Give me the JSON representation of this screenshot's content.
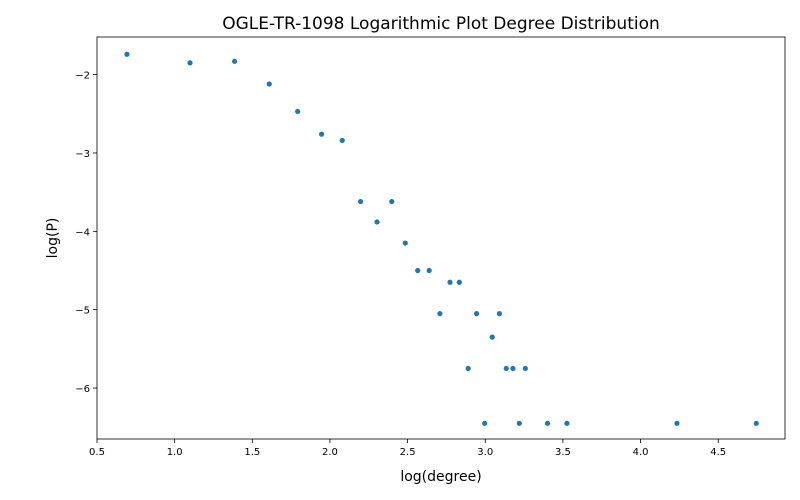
{
  "chart_data": {
    "type": "scatter",
    "title": "OGLE-TR-1098 Logarithmic Plot Degree Distribution",
    "xlabel": "log(degree)",
    "ylabel": "log(P)",
    "xlim": [
      0.5,
      4.93
    ],
    "ylim": [
      -6.65,
      -1.52
    ],
    "xticks": [
      0.5,
      1.0,
      1.5,
      2.0,
      2.5,
      3.0,
      3.5,
      4.0,
      4.5
    ],
    "xtick_labels": [
      "0.5",
      "1.0",
      "1.5",
      "2.0",
      "2.5",
      "3.0",
      "3.5",
      "4.0",
      "4.5"
    ],
    "yticks": [
      -2,
      -3,
      -4,
      -5,
      -6
    ],
    "ytick_labels": [
      "−2",
      "−3",
      "−4",
      "−5",
      "−6"
    ],
    "grid": false,
    "marker_color": "#1f77b4",
    "points": [
      {
        "x": 0.693,
        "y": -1.74
      },
      {
        "x": 1.099,
        "y": -1.85
      },
      {
        "x": 1.386,
        "y": -1.83
      },
      {
        "x": 1.609,
        "y": -2.12
      },
      {
        "x": 1.792,
        "y": -2.47
      },
      {
        "x": 1.946,
        "y": -2.76
      },
      {
        "x": 2.079,
        "y": -2.84
      },
      {
        "x": 2.197,
        "y": -3.62
      },
      {
        "x": 2.303,
        "y": -3.88
      },
      {
        "x": 2.398,
        "y": -3.62
      },
      {
        "x": 2.485,
        "y": -4.15
      },
      {
        "x": 2.565,
        "y": -4.5
      },
      {
        "x": 2.639,
        "y": -4.5
      },
      {
        "x": 2.708,
        "y": -5.05
      },
      {
        "x": 2.773,
        "y": -4.65
      },
      {
        "x": 2.833,
        "y": -4.65
      },
      {
        "x": 2.89,
        "y": -5.75
      },
      {
        "x": 2.944,
        "y": -5.05
      },
      {
        "x": 2.996,
        "y": -6.45
      },
      {
        "x": 3.045,
        "y": -5.35
      },
      {
        "x": 3.091,
        "y": -5.05
      },
      {
        "x": 3.135,
        "y": -5.75
      },
      {
        "x": 3.178,
        "y": -5.75
      },
      {
        "x": 3.219,
        "y": -6.45
      },
      {
        "x": 3.258,
        "y": -5.75
      },
      {
        "x": 3.401,
        "y": -6.45
      },
      {
        "x": 3.526,
        "y": -6.45
      },
      {
        "x": 4.234,
        "y": -6.45
      },
      {
        "x": 4.745,
        "y": -6.45
      }
    ]
  }
}
